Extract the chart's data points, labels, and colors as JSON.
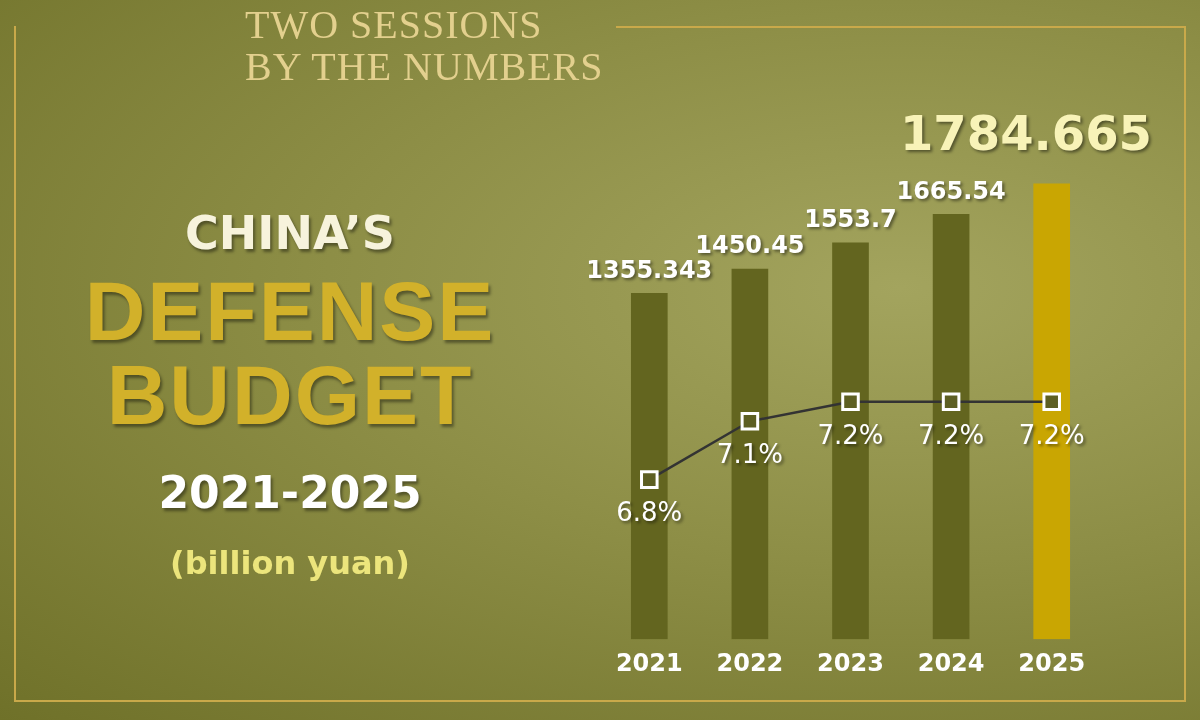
{
  "chart_data": {
    "type": "bar",
    "title": "CHINA’S DEFENSE BUDGET",
    "subtitle": "2021-2025",
    "annotations": [
      "TWO SESSIONS BY THE NUMBERS",
      "(billion yuan)"
    ],
    "categories": [
      "2021",
      "2022",
      "2023",
      "2024",
      "2025"
    ],
    "series": [
      {
        "colors": [
          "#63651f",
          "#63651f",
          "#63651f",
          "#63651f",
          "#c9a602"
        ],
        "values": [
          1355.343,
          1450.45,
          1553.7,
          1665.54,
          1784.665
        ],
        "value_labels": [
          "1355.343",
          "1450.45",
          "1553.7",
          "1665.54",
          "1784.665"
        ]
      },
      {
        "type": "line",
        "axis": "y2",
        "color": "#333333",
        "values": [
          6.8,
          7.1,
          7.2,
          7.2,
          7.2
        ],
        "value_labels": [
          "6.8%",
          "7.1%",
          "7.2%",
          "7.2%",
          "7.2%"
        ]
      }
    ],
    "legend": false,
    "grid": false,
    "marker": "square",
    "line_style": "solid"
  }
}
